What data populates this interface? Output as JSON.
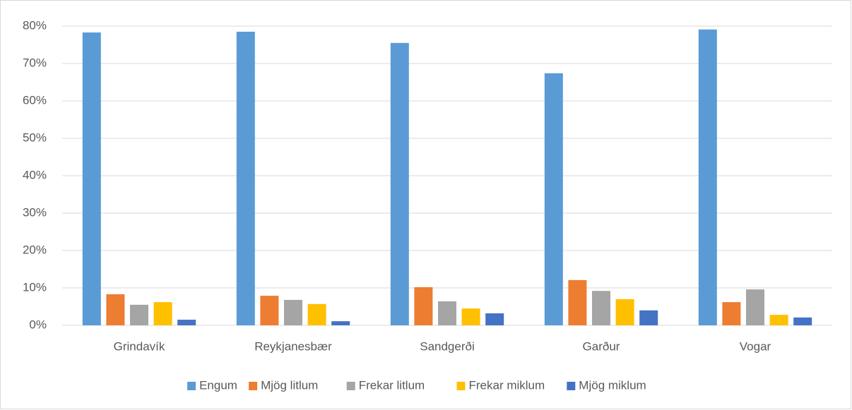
{
  "chart_data": {
    "type": "bar",
    "categories": [
      "Grindavík",
      "Reykjanesbær",
      "Sandgerði",
      "Garður",
      "Vogar"
    ],
    "series": [
      {
        "name": "Engum",
        "color": "#5b9bd5",
        "values": [
          78.3,
          78.5,
          75.5,
          67.4,
          79.1
        ]
      },
      {
        "name": "Mjög litlum",
        "color": "#ed7d31",
        "values": [
          8.3,
          7.9,
          10.2,
          12.1,
          6.2
        ]
      },
      {
        "name": "Frekar litlum",
        "color": "#a5a5a5",
        "values": [
          5.5,
          6.8,
          6.4,
          9.2,
          9.6
        ]
      },
      {
        "name": "Frekar miklum",
        "color": "#ffc000",
        "values": [
          6.2,
          5.7,
          4.5,
          7.0,
          2.8
        ]
      },
      {
        "name": "Mjög miklum",
        "color": "#4472c4",
        "values": [
          1.5,
          1.1,
          3.2,
          4.0,
          2.1
        ]
      }
    ],
    "ylim": [
      0,
      80
    ],
    "yticks": [
      {
        "value": 0,
        "label": "0%"
      },
      {
        "value": 10,
        "label": "10%"
      },
      {
        "value": 20,
        "label": "20%"
      },
      {
        "value": 30,
        "label": "30%"
      },
      {
        "value": 40,
        "label": "40%"
      },
      {
        "value": 50,
        "label": "50%"
      },
      {
        "value": 60,
        "label": "60%"
      },
      {
        "value": 70,
        "label": "70%"
      },
      {
        "value": 80,
        "label": "80%"
      }
    ],
    "grid": true,
    "legend": "bottom"
  }
}
